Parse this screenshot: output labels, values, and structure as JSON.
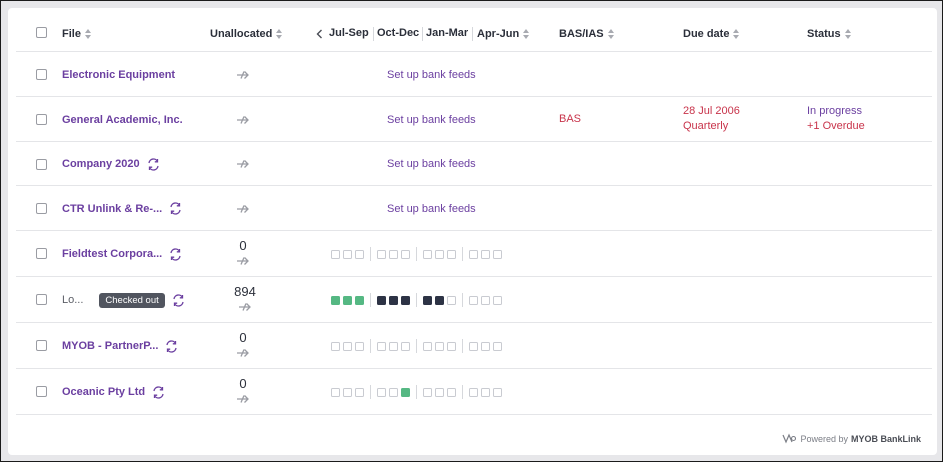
{
  "header": {
    "file": "File",
    "unallocated": "Unallocated",
    "quarters": [
      "Jul-Sep",
      "Oct-Dec",
      "Jan-Mar",
      "Apr-Jun"
    ],
    "basias": "BAS/IAS",
    "due_date": "Due date",
    "status": "Status"
  },
  "rows": [
    {
      "name": "Electronic Equipment",
      "unallocated": "",
      "bank": "Set up bank feeds",
      "bas": "",
      "due1": "",
      "due2": "",
      "status1": "",
      "status2": ""
    },
    {
      "name": "General Academic, Inc.",
      "unallocated": "",
      "bank": "Set up bank feeds",
      "bas": "BAS",
      "due1": "28 Jul 2006",
      "due2": "Quarterly",
      "status1": "In progress",
      "status2": "+1 Overdue"
    },
    {
      "name": "Company 2020",
      "unallocated": "",
      "bank": "Set up bank feeds"
    },
    {
      "name": "CTR Unlink & Re-...",
      "unallocated": "",
      "bank": "Set up bank feeds"
    },
    {
      "name": "Fieldtest Corpora...",
      "unallocated": "0"
    },
    {
      "name": "Lo...",
      "badge": "Checked out",
      "unallocated": "894"
    },
    {
      "name": "MYOB - PartnerP...",
      "unallocated": "0"
    },
    {
      "name": "Oceanic Pty Ltd",
      "unallocated": "0"
    }
  ],
  "footer": {
    "powered_by": "Powered by",
    "brand": "MYOB BankLink"
  },
  "colors": {
    "accent": "#6b3fa0",
    "overdue": "#c8344b",
    "green": "#55b883",
    "dark": "#2d3345"
  }
}
